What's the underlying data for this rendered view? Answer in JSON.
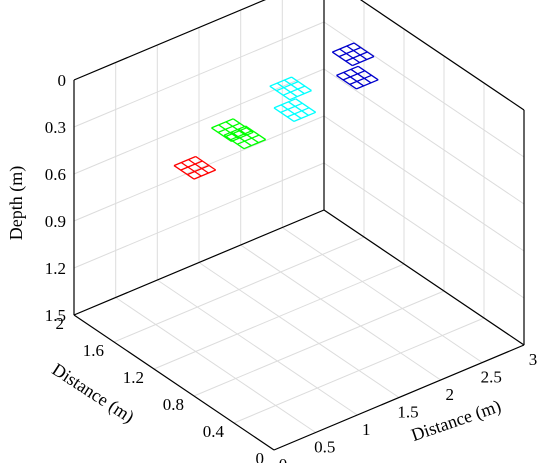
{
  "chart_data": {
    "type": "scatter-3d",
    "title": "",
    "xlabel": "Distance (m)",
    "ylabel": "Distance (m)",
    "zlabel": "Depth (m)",
    "xlim": [
      0,
      3
    ],
    "ylim": [
      0,
      2
    ],
    "zlim": [
      0,
      1.5
    ],
    "z_reversed": true,
    "grid": true,
    "x_ticks": [
      "0",
      "0.5",
      "1",
      "1.5",
      "2",
      "2.5",
      "3"
    ],
    "y_ticks": [
      "0",
      "0.4",
      "0.8",
      "1.2",
      "1.6",
      "2"
    ],
    "z_ticks": [
      "0",
      "0.3",
      "0.6",
      "0.9",
      "1.2",
      "1.5"
    ],
    "series": [
      {
        "color": "#ff0000",
        "patches": [
          {
            "x": 0.55,
            "y": 1.25,
            "depth": 0.36
          }
        ]
      },
      {
        "color": "#00ff00",
        "patches": [
          {
            "x": 1.0,
            "y": 1.25,
            "depth": 0.22
          },
          {
            "x": 1.15,
            "y": 1.25,
            "depth": 0.3
          }
        ]
      },
      {
        "color": "#00ffff",
        "patches": [
          {
            "x": 1.7,
            "y": 1.25,
            "depth": 0.11
          },
          {
            "x": 1.75,
            "y": 1.25,
            "depth": 0.26
          }
        ]
      },
      {
        "color": "#0000cc",
        "patches": [
          {
            "x": 2.45,
            "y": 1.25,
            "depth": 0.06
          },
          {
            "x": 2.5,
            "y": 1.25,
            "depth": 0.22
          }
        ]
      }
    ]
  }
}
